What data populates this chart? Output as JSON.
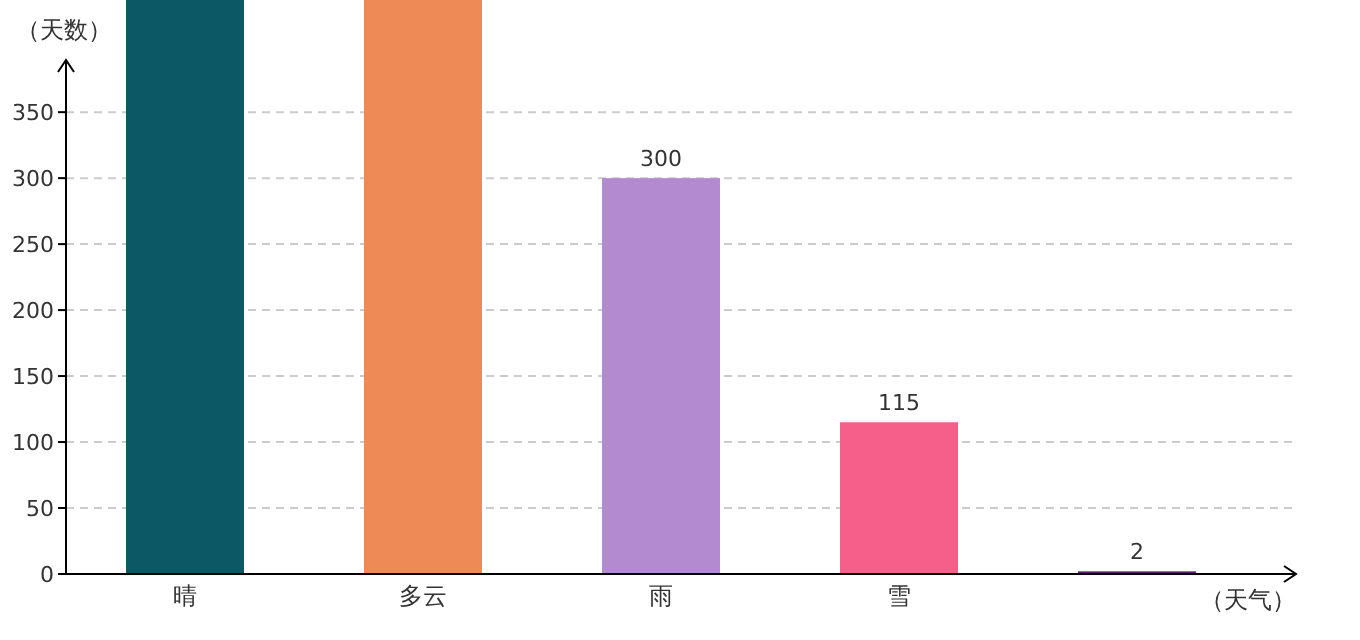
{
  "chart_data": {
    "type": "bar",
    "xlabel": "（天气）",
    "ylabel": "（天数）",
    "categories": [
      "晴",
      "多云",
      "雨",
      "雪",
      null
    ],
    "values": [
      435,
      435,
      300,
      115,
      2
    ],
    "colors": [
      "#0d5865",
      "#ee8a56",
      "#b38ad0",
      "#f55f8a",
      "#5a1a6f"
    ],
    "value_labels": [
      null,
      null,
      "300",
      "115",
      "2"
    ],
    "ylim": [
      0,
      435
    ],
    "yticks": [
      0,
      50,
      100,
      150,
      200,
      250,
      300,
      350
    ],
    "grid": "y"
  }
}
